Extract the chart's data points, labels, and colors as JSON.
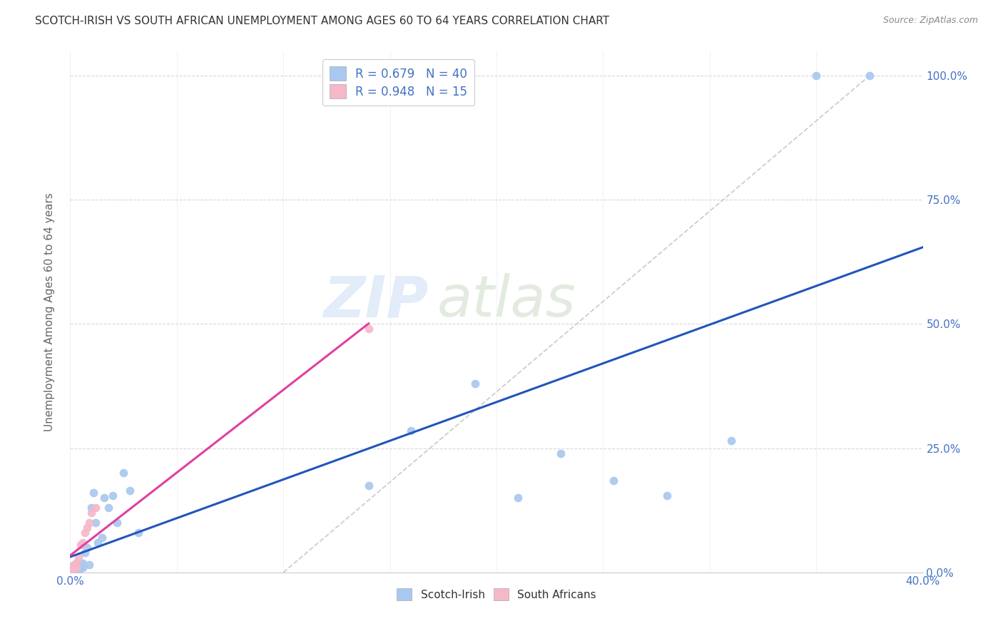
{
  "title": "SCOTCH-IRISH VS SOUTH AFRICAN UNEMPLOYMENT AMONG AGES 60 TO 64 YEARS CORRELATION CHART",
  "source": "Source: ZipAtlas.com",
  "ylabel": "Unemployment Among Ages 60 to 64 years",
  "xlim": [
    0.0,
    0.4
  ],
  "ylim": [
    0.0,
    1.05
  ],
  "scotch_irish_x": [
    0.001,
    0.001,
    0.001,
    0.002,
    0.002,
    0.002,
    0.003,
    0.003,
    0.003,
    0.004,
    0.004,
    0.005,
    0.005,
    0.006,
    0.006,
    0.007,
    0.008,
    0.009,
    0.01,
    0.011,
    0.012,
    0.013,
    0.015,
    0.016,
    0.018,
    0.02,
    0.022,
    0.025,
    0.028,
    0.032,
    0.14,
    0.16,
    0.19,
    0.21,
    0.23,
    0.255,
    0.28,
    0.31,
    0.35,
    0.375
  ],
  "scotch_irish_y": [
    0.005,
    0.008,
    0.012,
    0.005,
    0.01,
    0.015,
    0.005,
    0.01,
    0.015,
    0.01,
    0.02,
    0.008,
    0.015,
    0.01,
    0.018,
    0.04,
    0.05,
    0.015,
    0.13,
    0.16,
    0.1,
    0.06,
    0.07,
    0.15,
    0.13,
    0.155,
    0.1,
    0.2,
    0.165,
    0.08,
    0.175,
    0.285,
    0.38,
    0.15,
    0.24,
    0.185,
    0.155,
    0.265,
    1.0,
    1.0
  ],
  "south_african_x": [
    0.001,
    0.001,
    0.002,
    0.002,
    0.003,
    0.003,
    0.004,
    0.005,
    0.006,
    0.007,
    0.008,
    0.009,
    0.01,
    0.012,
    0.14
  ],
  "south_african_y": [
    0.005,
    0.01,
    0.008,
    0.015,
    0.01,
    0.02,
    0.03,
    0.055,
    0.06,
    0.08,
    0.09,
    0.1,
    0.12,
    0.13,
    0.49
  ],
  "scotch_irish_color": "#a8c8f0",
  "south_african_color": "#f5b8c8",
  "scotch_irish_line_color": "#2255bb",
  "south_african_line_color": "#e040a0",
  "dashed_line_color": "#c8c8c8",
  "R_scotch": 0.679,
  "N_scotch": 40,
  "R_south": 0.948,
  "N_south": 15,
  "watermark_zip": "ZIP",
  "watermark_atlas": "atlas",
  "background_color": "#ffffff",
  "grid_color": "#d8d8d8",
  "title_color": "#333333",
  "axis_label_color": "#666666",
  "tick_label_color": "#4472c4",
  "legend_label_color": "#4472c4",
  "bottom_legend_color": "#333333",
  "figsize": [
    14.06,
    8.92
  ],
  "dpi": 100
}
